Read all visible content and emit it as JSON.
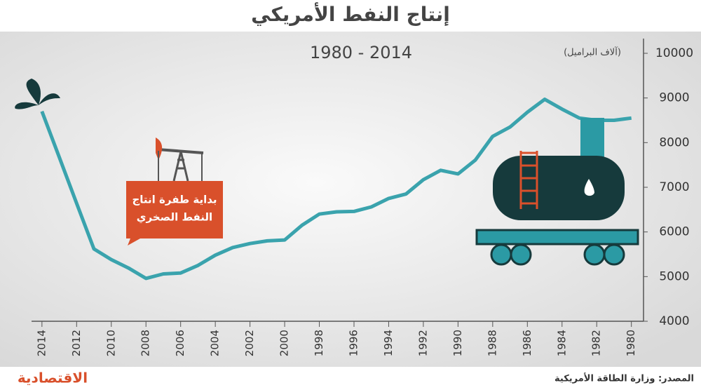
{
  "chart_data": {
    "type": "line",
    "title": "إنتاج النفط الأمريكي",
    "subtitle": "1980 - 2014",
    "y_label": "(آلاف البراميل)",
    "annotation": [
      "بداية طفرة انتاج",
      "النفط الصخري"
    ],
    "source": "المصدر: وزارة الطاقة الأمريكية",
    "brand": "الاقتصادية",
    "x": [
      1980,
      1981,
      1982,
      1983,
      1984,
      1985,
      1986,
      1987,
      1988,
      1989,
      1990,
      1991,
      1992,
      1993,
      1994,
      1995,
      1996,
      1997,
      1998,
      1999,
      2000,
      2001,
      2002,
      2003,
      2004,
      2005,
      2006,
      2007,
      2008,
      2009,
      2010,
      2011,
      2012,
      2013,
      2014
    ],
    "values": [
      8550,
      8500,
      8500,
      8550,
      8750,
      8970,
      8680,
      8350,
      8140,
      7610,
      7300,
      7380,
      7170,
      6850,
      6750,
      6560,
      6460,
      6450,
      6400,
      6150,
      5820,
      5800,
      5740,
      5650,
      5480,
      5250,
      5080,
      5060,
      4960,
      5190,
      5380,
      5620,
      6640,
      7670,
      8700
    ],
    "color": "#3aa3ad",
    "xlim": [
      2014.6,
      1979.3
    ],
    "xticks": [
      2014,
      2012,
      2010,
      2008,
      2006,
      2004,
      2002,
      2000,
      1998,
      1996,
      1994,
      1992,
      1990,
      1988,
      1986,
      1984,
      1982,
      1980
    ],
    "ylim": [
      4000,
      10000
    ],
    "yticks": [
      4000,
      5000,
      6000,
      7000,
      8000,
      9000,
      10000
    ]
  }
}
